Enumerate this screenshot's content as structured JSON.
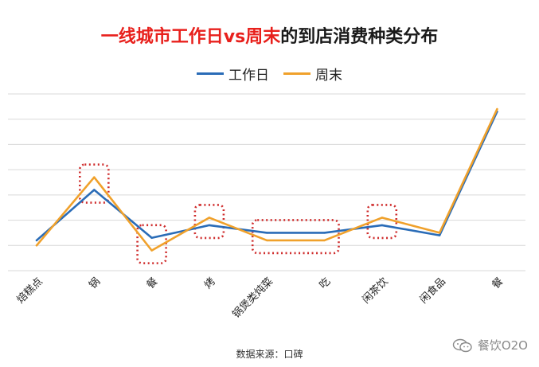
{
  "title_red": "一线城市工作日vs周末",
  "title_dark": "的到店消费种类分布",
  "source_label": "数据来源：口碑",
  "watermark_text": "餐饮O2O",
  "colors": {
    "workday": "#2a6cb7",
    "weekend": "#f0a12b",
    "highlight_box": "#cf2c2c",
    "grid": "#d9d9d9",
    "title_red": "#e8201c"
  },
  "chart_data": {
    "type": "line",
    "categories": [
      "烘焙糕点",
      "火锅",
      "快餐",
      "烧烤",
      "干锅煲类炖菜",
      "小吃",
      "休闲茶饮",
      "休闲食品",
      "正餐"
    ],
    "category_labels_visible": [
      "焙糕点",
      "锅",
      "餐",
      "烤",
      "锅煲类炖菜",
      "吃",
      "闲茶饮",
      "闲食品",
      "餐"
    ],
    "series": [
      {
        "name": "工作日",
        "values": [
          1.2,
          3.2,
          1.3,
          1.8,
          1.5,
          1.5,
          1.8,
          1.4,
          6.3
        ]
      },
      {
        "name": "周末",
        "values": [
          1.0,
          3.7,
          0.8,
          2.1,
          1.2,
          1.2,
          2.1,
          1.5,
          6.4
        ]
      }
    ],
    "highlighted_categories": [
      "火锅",
      "快餐",
      "烧烤",
      "干锅煲类炖菜",
      "小吃",
      "休闲茶饮"
    ],
    "ylim": [
      0,
      7
    ],
    "grid": true,
    "legend_position": "top-center",
    "axis_tick_labels_visible": false
  }
}
